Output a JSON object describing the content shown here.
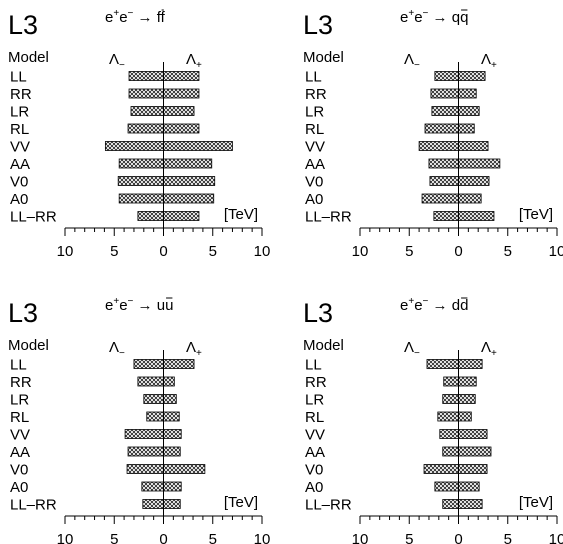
{
  "chart_data": [
    {
      "type": "bar",
      "experiment": "L3",
      "process": {
        "prefix": "e",
        "mid": "e",
        "arrow": "→",
        "fermion": "f"
      },
      "header": "Model",
      "lambda_minus": "Λ",
      "lambda_plus": "Λ",
      "unit": "[TeV]",
      "categories": [
        "LL",
        "RR",
        "LR",
        "RL",
        "VV",
        "AA",
        "V0",
        "A0",
        "LL–RR"
      ],
      "series": [
        {
          "values": [
            [
              -3.5,
              3.6
            ],
            [
              -3.5,
              3.6
            ],
            [
              -3.3,
              3.1
            ],
            [
              -3.6,
              3.6
            ],
            [
              -5.9,
              7.0
            ],
            [
              -4.5,
              4.9
            ],
            [
              -4.6,
              5.2
            ],
            [
              -4.5,
              5.1
            ],
            [
              -2.6,
              3.6
            ]
          ]
        }
      ],
      "xlim": [
        -10,
        10
      ],
      "xticks": [
        "10",
        "5",
        "0",
        "5",
        "10"
      ]
    },
    {
      "type": "bar",
      "experiment": "L3",
      "process": {
        "prefix": "e",
        "mid": "e",
        "arrow": "→",
        "fermion": "q"
      },
      "header": "Model",
      "lambda_minus": "Λ",
      "lambda_plus": "Λ",
      "unit": "[TeV]",
      "categories": [
        "LL",
        "RR",
        "LR",
        "RL",
        "VV",
        "AA",
        "V0",
        "A0",
        "LL–RR"
      ],
      "series": [
        {
          "values": [
            [
              -2.4,
              2.7
            ],
            [
              -2.8,
              1.8
            ],
            [
              -2.7,
              2.1
            ],
            [
              -3.4,
              1.6
            ],
            [
              -4.0,
              3.0
            ],
            [
              -3.0,
              4.2
            ],
            [
              -2.9,
              3.1
            ],
            [
              -3.7,
              2.3
            ],
            [
              -2.5,
              3.6
            ]
          ]
        }
      ],
      "xlim": [
        -10,
        10
      ],
      "xticks": [
        "10",
        "5",
        "0",
        "5",
        "10"
      ]
    },
    {
      "type": "bar",
      "experiment": "L3",
      "process": {
        "prefix": "e",
        "mid": "e",
        "arrow": "→",
        "fermion": "u"
      },
      "header": "Model",
      "lambda_minus": "Λ",
      "lambda_plus": "Λ",
      "unit": "[TeV]",
      "categories": [
        "LL",
        "RR",
        "LR",
        "RL",
        "VV",
        "AA",
        "V0",
        "A0",
        "LL–RR"
      ],
      "series": [
        {
          "values": [
            [
              -3.0,
              3.1
            ],
            [
              -2.6,
              1.1
            ],
            [
              -2.0,
              1.3
            ],
            [
              -1.7,
              1.6
            ],
            [
              -3.9,
              1.8
            ],
            [
              -3.6,
              1.7
            ],
            [
              -3.7,
              4.2
            ],
            [
              -2.2,
              1.8
            ],
            [
              -2.1,
              1.7
            ]
          ]
        }
      ],
      "xlim": [
        -10,
        10
      ],
      "xticks": [
        "10",
        "5",
        "0",
        "5",
        "10"
      ]
    },
    {
      "type": "bar",
      "experiment": "L3",
      "process": {
        "prefix": "e",
        "mid": "e",
        "arrow": "→",
        "fermion": "d"
      },
      "header": "Model",
      "lambda_minus": "Λ",
      "lambda_plus": "Λ",
      "unit": "[TeV]",
      "categories": [
        "LL",
        "RR",
        "LR",
        "RL",
        "VV",
        "AA",
        "V0",
        "A0",
        "LL–RR"
      ],
      "series": [
        {
          "values": [
            [
              -3.2,
              2.4
            ],
            [
              -1.5,
              1.8
            ],
            [
              -1.6,
              1.7
            ],
            [
              -2.1,
              1.3
            ],
            [
              -1.9,
              2.9
            ],
            [
              -1.6,
              3.3
            ],
            [
              -3.5,
              2.9
            ],
            [
              -2.4,
              2.1
            ],
            [
              -1.6,
              2.4
            ]
          ]
        }
      ],
      "xlim": [
        -10,
        10
      ],
      "xticks": [
        "10",
        "5",
        "0",
        "5",
        "10"
      ]
    }
  ]
}
